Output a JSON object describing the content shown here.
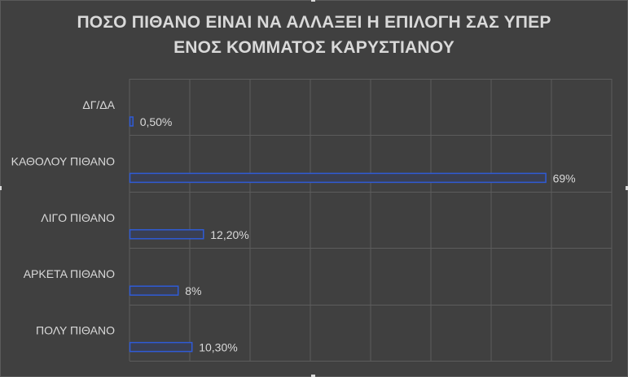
{
  "chart_data": {
    "type": "bar",
    "orientation": "horizontal",
    "title_lines": [
      "ΠΟΣΟ ΠΙΘΑΝΟ ΕΙΝΑΙ ΝΑ ΑΛΛΑΞΕΙ Η ΕΠΙΛΟΓΗ ΣΑΣ ΥΠΕΡ",
      "ΕΝΟΣ ΚΟΜΜΑΤΟΣ ΚΑΡΥΣΤΙΑΝΟΥ"
    ],
    "categories": [
      "ΔΓ/ΔΑ",
      "ΚΑΘΟΛΟΥ ΠΙΘΑΝΟ",
      "ΛΙΓΟ ΠΙΘΑΝΟ",
      "ΑΡΚΕΤΑ ΠΙΘΑΝΟ",
      "ΠΟΛΥ ΠΙΘΑΝΟ"
    ],
    "values": [
      0.5,
      69,
      12.2,
      8,
      10.3
    ],
    "value_labels": [
      "0,50%",
      "69%",
      "12,20%",
      "8%",
      "10,30%"
    ],
    "xlim": [
      0,
      80
    ],
    "gridlines": true,
    "legend": "none",
    "colors": {
      "background": "#404040",
      "bar_fill": "#3a3f52",
      "bar_stroke": "#2f5bd6",
      "grid": "#5c5c5c",
      "text": "#d9d9d9"
    }
  }
}
